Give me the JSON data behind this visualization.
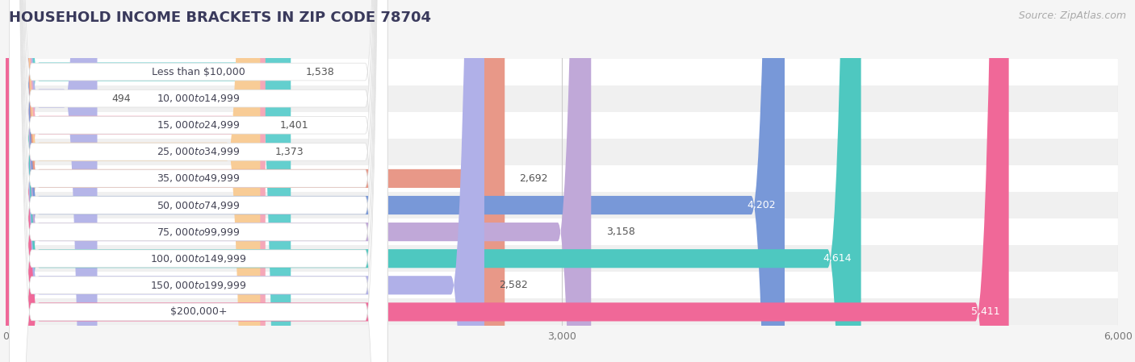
{
  "title": "HOUSEHOLD INCOME BRACKETS IN ZIP CODE 78704",
  "source": "Source: ZipAtlas.com",
  "categories": [
    "Less than $10,000",
    "$10,000 to $14,999",
    "$15,000 to $24,999",
    "$25,000 to $34,999",
    "$35,000 to $49,999",
    "$50,000 to $74,999",
    "$75,000 to $99,999",
    "$100,000 to $149,999",
    "$150,000 to $199,999",
    "$200,000+"
  ],
  "values": [
    1538,
    494,
    1401,
    1373,
    2692,
    4202,
    3158,
    4614,
    2582,
    5411
  ],
  "bar_colors": [
    "#63cfce",
    "#b5b5e8",
    "#f5a8b8",
    "#f8cc96",
    "#e89888",
    "#7898d8",
    "#c0a8d8",
    "#4ec8c0",
    "#b0b0e8",
    "#f06898"
  ],
  "row_bg_colors": [
    "#ffffff",
    "#f0f0f0"
  ],
  "xlim": [
    0,
    6000
  ],
  "xticks": [
    0,
    3000,
    6000
  ],
  "background_color": "#f5f5f5",
  "title_color": "#3a3a5c",
  "source_color": "#aaaaaa",
  "value_threshold": 3500,
  "title_fontsize": 13,
  "source_fontsize": 9,
  "label_fontsize": 9,
  "category_fontsize": 9,
  "tick_fontsize": 9
}
